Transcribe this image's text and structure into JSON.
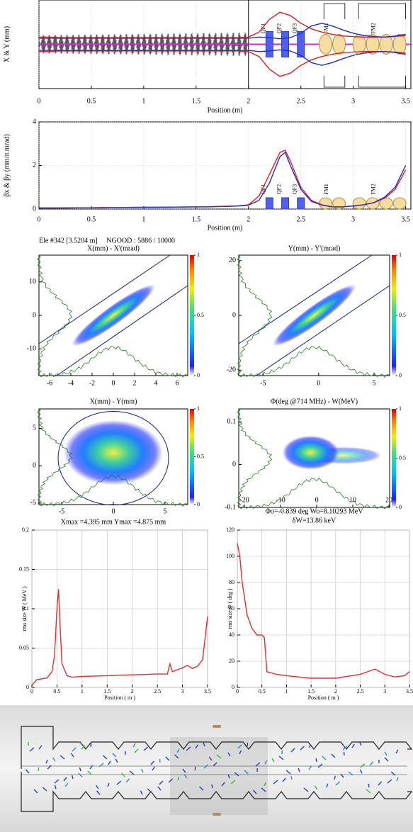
{
  "header": "Ele #342 [3.5204 m]     NGOOD : 5886 / 10000",
  "elements": [
    {
      "label": "QF1",
      "position": 2.2
    },
    {
      "label": "QF2",
      "position": 2.35
    },
    {
      "label": "QF3",
      "position": 2.5
    },
    {
      "label": "FM1",
      "position": 2.8
    },
    {
      "label": "FM2",
      "position": 3.25
    }
  ],
  "chart_data": [
    {
      "type": "envelope",
      "ylabel": "X & Y (mm)",
      "xlabel": "Position (m)",
      "xlim": [
        0,
        3.55
      ],
      "xticks": [
        0,
        0.5,
        1,
        1.5,
        2,
        2.5,
        3,
        3.5
      ],
      "ylim": [
        -8,
        8
      ],
      "grid": true,
      "x": [
        0,
        0.1,
        0.2,
        0.3,
        0.4,
        0.5,
        0.6,
        0.7,
        0.8,
        0.9,
        1,
        1.1,
        1.2,
        1.3,
        1.4,
        1.5,
        1.6,
        1.7,
        1.8,
        1.9,
        2,
        2.1,
        2.2,
        2.3,
        2.4,
        2.5,
        2.6,
        2.7,
        2.8,
        2.9,
        3,
        3.1,
        3.2,
        3.3,
        3.4,
        3.5
      ],
      "series": [
        {
          "color": "#e02020",
          "values": [
            1.3,
            1.3,
            1.2,
            1.2,
            1.2,
            1.2,
            1.2,
            1.2,
            1.2,
            1.2,
            1.2,
            1.2,
            1.2,
            1.2,
            1.2,
            1.2,
            1.2,
            1.2,
            1.2,
            1.2,
            1.3,
            2.2,
            4.5,
            5.8,
            5.2,
            3.8,
            2.8,
            2.2,
            1.8,
            1.5,
            1.4,
            1.3,
            1.3,
            1.3,
            1.4,
            1.6
          ]
        },
        {
          "color": "#2030c0",
          "values": [
            1.1,
            1.1,
            1.1,
            1.1,
            1.1,
            1.1,
            1.1,
            1.1,
            1.1,
            1.1,
            1.1,
            1.1,
            1.1,
            1.1,
            1.1,
            1.1,
            1.1,
            1.1,
            1.1,
            1.1,
            1.1,
            1.3,
            1.2,
            1.0,
            1.2,
            2.0,
            3.3,
            3.8,
            3.3,
            2.6,
            2.0,
            1.6,
            1.4,
            1.3,
            1.5,
            1.8
          ]
        }
      ]
    },
    {
      "type": "line",
      "ylabel": "βx & βy (mm/π.mrad)",
      "xlabel": "Position (m)",
      "xlim": [
        0,
        3.55
      ],
      "xticks": [
        0,
        0.5,
        1,
        1.5,
        2,
        2.5,
        3,
        3.5
      ],
      "ylim": [
        0,
        4
      ],
      "yticks": [
        0,
        2,
        4
      ],
      "grid": true,
      "show_elements": true,
      "x": [
        0,
        0.1,
        0.2,
        0.3,
        0.4,
        0.5,
        0.6,
        0.7,
        0.8,
        0.9,
        1,
        1.1,
        1.2,
        1.3,
        1.4,
        1.5,
        1.6,
        1.7,
        1.8,
        1.9,
        2,
        2.1,
        2.2,
        2.3,
        2.35,
        2.4,
        2.5,
        2.6,
        2.7,
        2.8,
        2.9,
        3,
        3.1,
        3.2,
        3.3,
        3.4,
        3.5
      ],
      "series": [
        {
          "color": "#e02020",
          "values": [
            0.05,
            0.05,
            0.05,
            0.06,
            0.06,
            0.06,
            0.07,
            0.07,
            0.07,
            0.08,
            0.08,
            0.08,
            0.09,
            0.09,
            0.1,
            0.1,
            0.1,
            0.12,
            0.13,
            0.15,
            0.2,
            0.6,
            1.6,
            2.6,
            2.7,
            2.2,
            1.0,
            0.4,
            0.2,
            0.1,
            0.1,
            0.15,
            0.2,
            0.3,
            0.5,
            0.9,
            1.8
          ]
        },
        {
          "color": "#2030c0",
          "values": [
            0.05,
            0.05,
            0.05,
            0.05,
            0.06,
            0.06,
            0.06,
            0.07,
            0.07,
            0.07,
            0.08,
            0.08,
            0.08,
            0.09,
            0.09,
            0.1,
            0.1,
            0.11,
            0.12,
            0.14,
            0.18,
            0.4,
            1.2,
            2.4,
            2.6,
            2.0,
            0.9,
            0.35,
            0.18,
            0.1,
            0.1,
            0.14,
            0.2,
            0.3,
            0.55,
            1.0,
            2.0
          ]
        }
      ]
    },
    {
      "type": "density",
      "title": "X(mm) - X'(mrad)",
      "xlim": [
        -7,
        7
      ],
      "xticks": [
        -6,
        -4,
        -2,
        0,
        2,
        4,
        6
      ],
      "ylim": [
        -18,
        18
      ],
      "yticks": [
        -10,
        0,
        10
      ],
      "colorbar_ticks": [
        0,
        0.5,
        1
      ]
    },
    {
      "type": "density",
      "title": "Y(mm) - Y'(mrad)",
      "xlim": [
        -7.2,
        6.4
      ],
      "xticks": [
        -5,
        0,
        5
      ],
      "ylim": [
        -22,
        22
      ],
      "yticks": [
        -20,
        0,
        20
      ],
      "colorbar_ticks": [
        0,
        0.5,
        1
      ]
    },
    {
      "type": "density",
      "title": "X(mm) - Y(mm)",
      "xlim": [
        -7.2,
        7.2
      ],
      "xticks": [
        -5,
        0,
        5
      ],
      "ylim": [
        -5.2,
        7.6
      ],
      "yticks": [
        -5,
        0,
        5
      ],
      "colorbar_ticks": [
        0,
        0.5,
        1
      ],
      "captions": [
        "Xmax =4.395 mm  Ymax =4.875 mm"
      ]
    },
    {
      "type": "density",
      "title": "Φ(deg @714 MHz) - W(MeV)",
      "xlim": [
        -21.6,
        20.2
      ],
      "xticks": [
        -20,
        -10,
        0,
        10,
        20
      ],
      "ylim": [
        -0.1,
        0.13
      ],
      "yticks": [
        -0.1,
        0,
        0.1
      ],
      "colorbar_ticks": [
        0,
        0.5,
        1
      ],
      "captions": [
        "Φo=-0.839 deg  Wo=8.10293 MeV",
        "δW=13.86 keV"
      ]
    },
    {
      "type": "line",
      "ylabel": "rms size W ( MeV )",
      "xlabel": "Position ( m )",
      "small": true,
      "xlim": [
        0,
        3.5
      ],
      "xticks": [
        0,
        0.5,
        1,
        1.5,
        2,
        2.5,
        3,
        3.5
      ],
      "ylim": [
        0,
        0.2
      ],
      "yticks": [
        0,
        0.05,
        0.1,
        0.15,
        0.2
      ],
      "grid": true,
      "x": [
        0,
        0.1,
        0.2,
        0.3,
        0.4,
        0.45,
        0.5,
        0.53,
        0.56,
        0.6,
        0.7,
        0.8,
        1,
        1.5,
        2,
        2.5,
        2.7,
        2.75,
        2.8,
        3,
        3.1,
        3.2,
        3.3,
        3.4,
        3.5
      ],
      "series": [
        {
          "color": "#e03030",
          "values": [
            0.003,
            0.01,
            0.011,
            0.012,
            0.02,
            0.04,
            0.1,
            0.125,
            0.08,
            0.03,
            0.015,
            0.013,
            0.014,
            0.015,
            0.016,
            0.017,
            0.017,
            0.03,
            0.02,
            0.025,
            0.028,
            0.024,
            0.027,
            0.035,
            0.09
          ]
        }
      ]
    },
    {
      "type": "line",
      "ylabel": "rms size Φ ( deg )",
      "xlabel": "Position ( m )",
      "small": true,
      "xlim": [
        0,
        3.5
      ],
      "xticks": [
        0,
        0.5,
        1,
        1.5,
        2,
        2.5,
        3,
        3.5
      ],
      "ylim": [
        0,
        120
      ],
      "yticks": [
        0,
        20,
        40,
        60,
        80,
        100,
        120
      ],
      "grid": true,
      "x": [
        0,
        0.05,
        0.1,
        0.2,
        0.3,
        0.4,
        0.5,
        0.55,
        0.6,
        0.8,
        1,
        1.5,
        2,
        2.5,
        2.8,
        3,
        3.2,
        3.4,
        3.5
      ],
      "series": [
        {
          "color": "#e03030",
          "values": [
            110,
            100,
            80,
            55,
            45,
            40,
            40,
            38,
            12,
            10,
            9,
            7,
            7,
            10,
            14,
            10,
            8,
            9,
            12
          ]
        }
      ]
    }
  ]
}
